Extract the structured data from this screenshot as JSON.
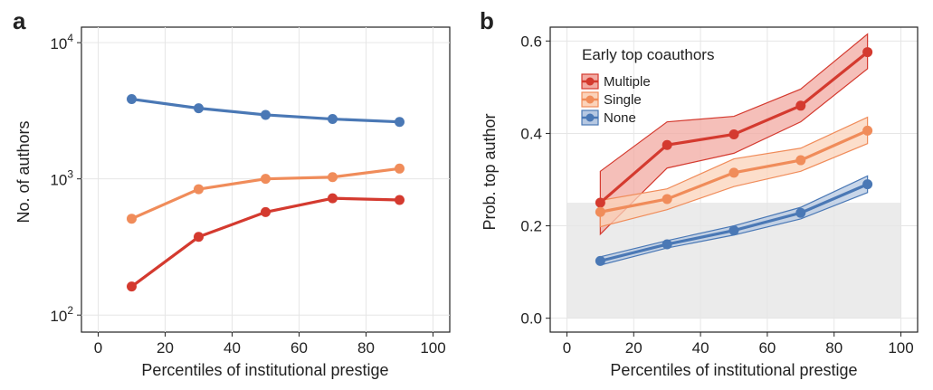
{
  "chart_data": [
    {
      "panel": "a",
      "type": "line",
      "scale_y": "log",
      "xlabel": "Percentiles of institutional prestige",
      "ylabel": "No. of authors",
      "xlim": [
        -5,
        105
      ],
      "ylim": [
        75,
        13000
      ],
      "x_ticks": [
        0,
        20,
        40,
        60,
        80,
        100
      ],
      "y_ticks": [
        {
          "value": 100,
          "base": "10",
          "exp": "2"
        },
        {
          "value": 1000,
          "base": "10",
          "exp": "3"
        },
        {
          "value": 10000,
          "base": "10",
          "exp": "4"
        }
      ],
      "grid": true,
      "x": [
        10,
        30,
        50,
        70,
        90
      ],
      "series": [
        {
          "name": "None",
          "color": "#4a78b5",
          "values": [
            3850,
            3300,
            2950,
            2750,
            2620
          ]
        },
        {
          "name": "Single",
          "color": "#f08c5a",
          "values": [
            510,
            840,
            1000,
            1030,
            1190
          ]
        },
        {
          "name": "Multiple",
          "color": "#d43a2f",
          "values": [
            162,
            375,
            570,
            720,
            700
          ]
        }
      ]
    },
    {
      "panel": "b",
      "type": "line",
      "xlabel": "Percentiles of institutional prestige",
      "ylabel": "Prob. top author",
      "xlim": [
        -5,
        105
      ],
      "ylim": [
        -0.03,
        0.63
      ],
      "x_ticks": [
        0,
        20,
        40,
        60,
        80,
        100
      ],
      "y_ticks": [
        "0.0",
        "0.2",
        "0.4",
        "0.6"
      ],
      "grid": true,
      "shaded_region": {
        "x": [
          0,
          100
        ],
        "y": [
          0,
          0.25
        ],
        "color": "#ebebeb"
      },
      "legend": {
        "title": "Early top coauthors",
        "position": "top-left"
      },
      "x": [
        10,
        30,
        50,
        70,
        90
      ],
      "series": [
        {
          "name": "Multiple",
          "color": "#d43a2f",
          "fill": "#f2aaa2",
          "values": [
            0.25,
            0.375,
            0.398,
            0.46,
            0.576
          ],
          "lower": [
            0.182,
            0.325,
            0.357,
            0.425,
            0.54
          ],
          "upper": [
            0.318,
            0.425,
            0.437,
            0.496,
            0.615
          ]
        },
        {
          "name": "Single",
          "color": "#f08c5a",
          "fill": "#fbd3ba",
          "values": [
            0.23,
            0.258,
            0.315,
            0.342,
            0.406
          ],
          "lower": [
            0.198,
            0.235,
            0.285,
            0.318,
            0.378
          ],
          "upper": [
            0.255,
            0.28,
            0.345,
            0.368,
            0.435
          ]
        },
        {
          "name": "None",
          "color": "#4a78b5",
          "fill": "#b6c8e2",
          "values": [
            0.124,
            0.16,
            0.19,
            0.228,
            0.29
          ],
          "lower": [
            0.115,
            0.152,
            0.18,
            0.215,
            0.272
          ],
          "upper": [
            0.133,
            0.168,
            0.2,
            0.24,
            0.308
          ]
        }
      ]
    }
  ]
}
